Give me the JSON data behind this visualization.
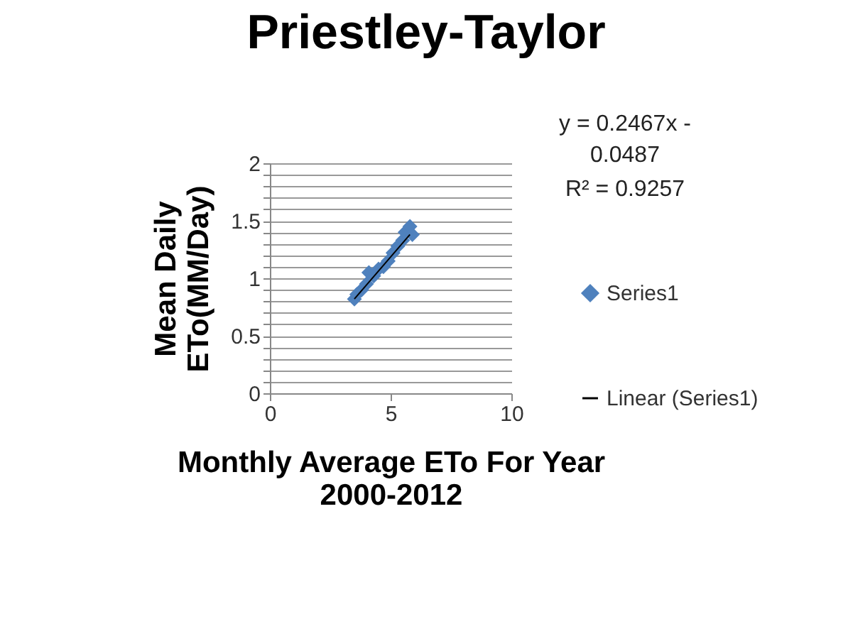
{
  "chart_data": {
    "type": "scatter",
    "title": "Priestley-Taylor",
    "xlabel": "Monthly Average ETo For Year 2000-2012",
    "ylabel": "Mean Daily ETo(MM/Day)",
    "annotations": [
      "y = 0.2467x - 0.0487",
      "R² = 0.9257"
    ],
    "xlim": [
      0,
      10
    ],
    "xticks": [
      0,
      5,
      10
    ],
    "ylim": [
      0,
      2
    ],
    "yticks": [
      0,
      {
        "value": 0.1,
        "label": null
      },
      {
        "value": 0.2,
        "label": null
      },
      {
        "value": 0.3,
        "label": null
      },
      {
        "value": 0.4,
        "label": null
      },
      0.5,
      {
        "value": 0.6,
        "label": null
      },
      {
        "value": 0.7,
        "label": null
      },
      {
        "value": 0.8,
        "label": null
      },
      {
        "value": 0.9,
        "label": null
      },
      1,
      {
        "value": 1.1,
        "label": null
      },
      {
        "value": 1.2,
        "label": null
      },
      {
        "value": 1.3,
        "label": null
      },
      {
        "value": 1.4,
        "label": null
      },
      1.5,
      {
        "value": 1.6,
        "label": null
      },
      {
        "value": 1.7,
        "label": null
      },
      {
        "value": 1.8,
        "label": null
      },
      {
        "value": 1.9,
        "label": null
      },
      2
    ],
    "grid": "y",
    "legend": "right",
    "series": [
      {
        "name": "Series1",
        "type": "scatter",
        "marker": "diamond",
        "color": "#4f81bd",
        "x": [
          3.5,
          3.6,
          3.8,
          4.0,
          4.1,
          4.3,
          4.5,
          4.7,
          4.9,
          5.1,
          5.3,
          5.5,
          5.6,
          5.8,
          5.9
        ],
        "values": [
          0.82,
          0.86,
          0.9,
          0.95,
          1.05,
          1.02,
          1.08,
          1.1,
          1.15,
          1.22,
          1.28,
          1.33,
          1.4,
          1.45,
          1.38
        ]
      },
      {
        "name": "Linear (Series1)",
        "type": "line",
        "marker": "none",
        "color": "#000000",
        "x": [
          3.5,
          5.8
        ],
        "values": [
          0.82,
          1.38
        ]
      }
    ]
  }
}
